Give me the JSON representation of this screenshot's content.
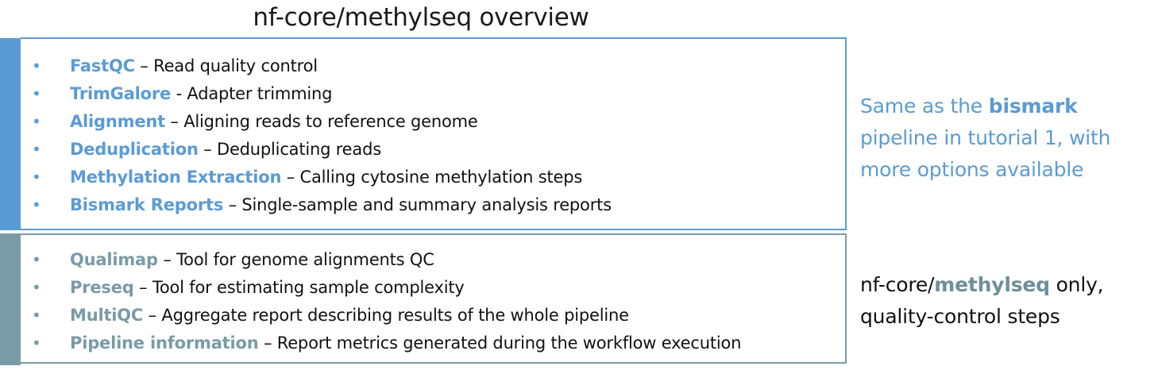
{
  "title": "nf-core/methylseq overview",
  "colors": {
    "bismark_blue": "#5b9bd5",
    "qc_teal": "#7a9ba6"
  },
  "bismark_section": {
    "items": [
      {
        "name": "FastQC",
        "desc": " – Read quality control"
      },
      {
        "name": "TrimGalore",
        "desc": " -  Adapter trimming"
      },
      {
        "name": "Alignment",
        "desc": " – Aligning reads to reference genome"
      },
      {
        "name": "Deduplication",
        "desc": " – Deduplicating reads"
      },
      {
        "name": "Methylation Extraction",
        "desc": " – Calling cytosine methylation steps"
      },
      {
        "name": "Bismark Reports",
        "desc": " – Single-sample and summary analysis reports"
      }
    ],
    "note": {
      "line1_pre": "Same as the ",
      "line1_bold": "bismark",
      "line2": "pipeline in tutorial 1, with",
      "line3": "more options available"
    }
  },
  "qc_section": {
    "items": [
      {
        "name": "Qualimap",
        "desc": " – Tool for genome alignments QC"
      },
      {
        "name": "Preseq",
        "desc": " – Tool for estimating sample complexity"
      },
      {
        "name": "MultiQC",
        "desc": " – Aggregate report describing results of the whole pipeline"
      },
      {
        "name": "Pipeline information",
        "desc": " – Report metrics generated during the workflow execution"
      }
    ],
    "note": {
      "line1_pre": "nf-core/",
      "line1_bold": "methylseq",
      "line1_post": " only,",
      "line2": "quality-control steps"
    }
  },
  "bullet_char": "•"
}
